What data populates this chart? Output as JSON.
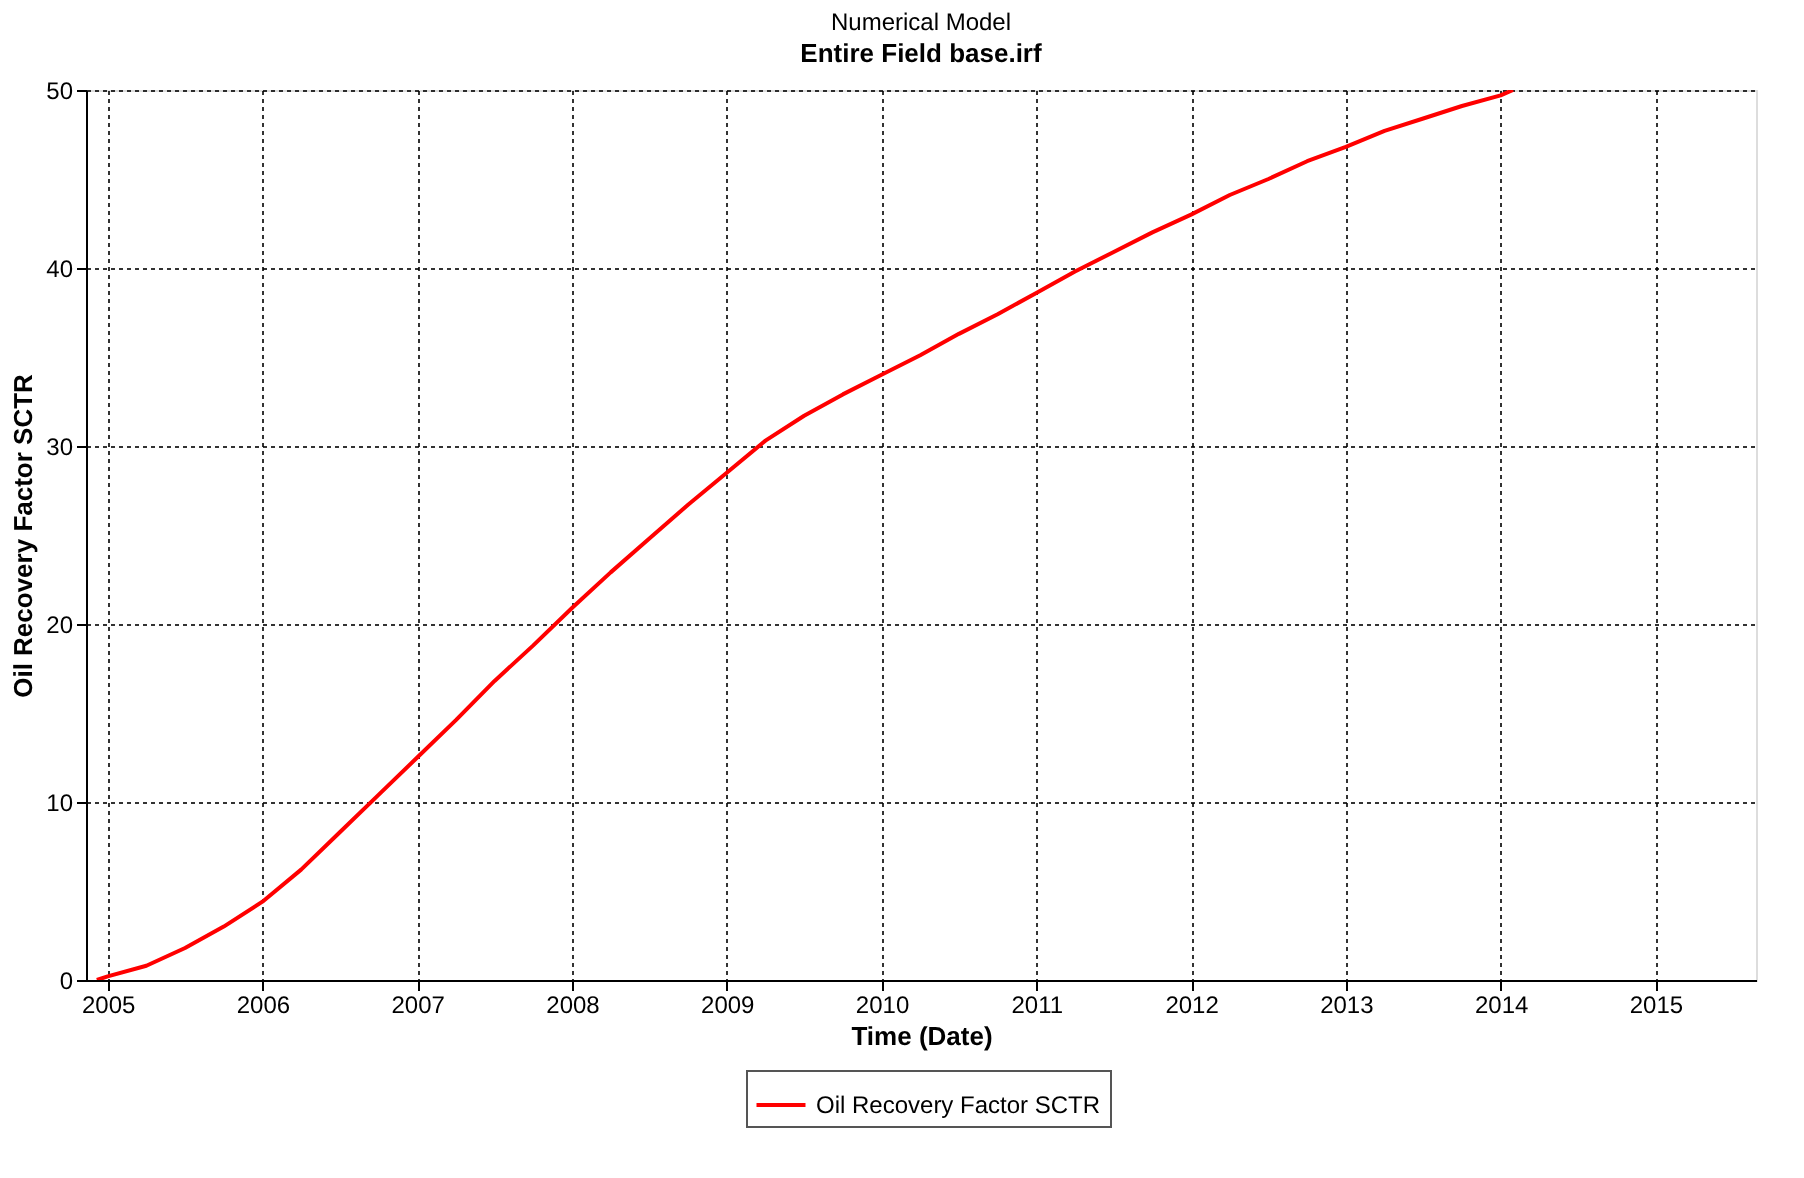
{
  "chart_data": {
    "type": "line",
    "title": "Numerical Model",
    "subtitle": "Entire  Field base.irf",
    "xlabel": "Time (Date)",
    "ylabel": "Oil Recovery Factor SCTR",
    "x": [
      2004.93,
      2005.0,
      2005.25,
      2005.5,
      2005.75,
      2006.0,
      2006.25,
      2006.5,
      2006.75,
      2007.0,
      2007.25,
      2007.5,
      2007.75,
      2008.0,
      2008.25,
      2008.5,
      2008.75,
      2009.0,
      2009.25,
      2009.5,
      2009.75,
      2010.0,
      2010.25,
      2010.5,
      2010.75,
      2011.0,
      2011.25,
      2011.5,
      2011.75,
      2012.0,
      2012.25,
      2012.5,
      2012.75,
      2013.0,
      2013.25,
      2013.5,
      2013.75,
      2014.0,
      2014.08
    ],
    "series": [
      {
        "name": "Oil Recovery Factor SCTR",
        "color": "#ff0000",
        "values": [
          0,
          0.2,
          0.8,
          1.8,
          3.0,
          4.4,
          6.2,
          8.3,
          10.4,
          12.5,
          14.6,
          16.8,
          18.8,
          20.9,
          22.9,
          24.8,
          26.7,
          28.5,
          30.3,
          31.7,
          32.9,
          34.0,
          35.1,
          36.3,
          37.4,
          38.6,
          39.8,
          40.9,
          42.0,
          43.0,
          44.1,
          45.0,
          46.0,
          46.8,
          47.7,
          48.4,
          49.1,
          49.7,
          50.0
        ]
      }
    ],
    "xlim": [
      2004.86,
      2015.65
    ],
    "xticks": [
      2005,
      2006,
      2007,
      2008,
      2009,
      2010,
      2011,
      2012,
      2013,
      2014,
      2015
    ],
    "ylim": [
      0,
      50
    ],
    "yticks": [
      0,
      10,
      20,
      30,
      40,
      50
    ],
    "grid": true,
    "legend": "bottom",
    "line_style": "solid",
    "marker": "none"
  }
}
